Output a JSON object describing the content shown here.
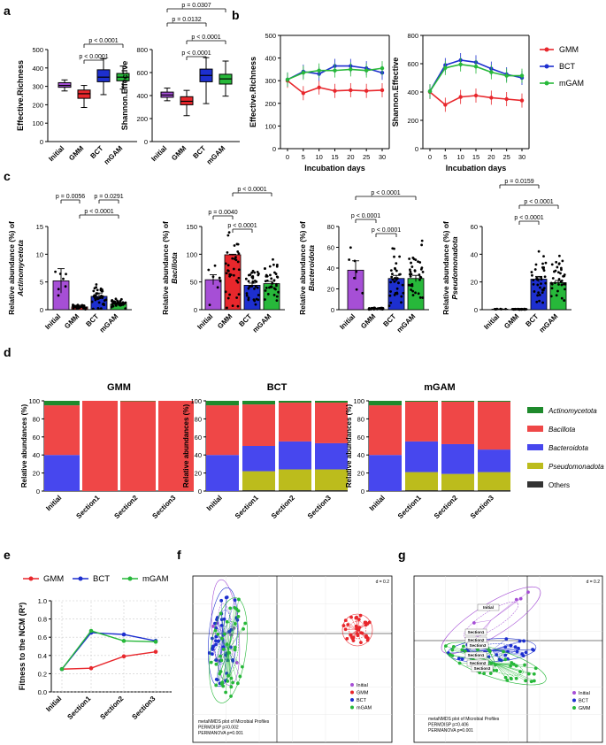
{
  "colors": {
    "Initial": "#a64fd6",
    "GMM": "#e8272c",
    "BCT": "#1d2fcf",
    "mGAM": "#27b83a",
    "Actinomycetota": "#1e8a2c",
    "Bacillota": "#ef4747",
    "Bacteroidota": "#4747ee",
    "Pseudomonadota": "#bcbc1c",
    "Others": "#333333"
  },
  "panel_labels": [
    "a",
    "b",
    "c",
    "d",
    "e",
    "f",
    "g"
  ],
  "chart_data": [
    {
      "id": "a1",
      "type": "box",
      "ylabel": "Effective.Richness",
      "categories": [
        "Initial",
        "GMM",
        "BCT",
        "mGAM"
      ],
      "ylim": [
        0,
        500
      ],
      "yticks": [
        0,
        100,
        200,
        300,
        400,
        500
      ],
      "boxes": [
        [
          275,
          295,
          305,
          320,
          335
        ],
        [
          185,
          235,
          260,
          280,
          305
        ],
        [
          255,
          325,
          350,
          390,
          450
        ],
        [
          285,
          330,
          350,
          370,
          410
        ]
      ],
      "annotations": [
        "p < 0.0001",
        "p < 0.0001"
      ]
    },
    {
      "id": "a2",
      "type": "box",
      "ylabel": "Shannon.Effective",
      "categories": [
        "Initial",
        "GMM",
        "BCT",
        "mGAM"
      ],
      "ylim": [
        0,
        800
      ],
      "yticks": [
        0,
        200,
        400,
        600,
        800
      ],
      "boxes": [
        [
          355,
          385,
          405,
          430,
          465
        ],
        [
          225,
          320,
          350,
          390,
          445
        ],
        [
          330,
          520,
          575,
          630,
          730
        ],
        [
          395,
          500,
          545,
          585,
          700
        ]
      ],
      "annotations": [
        "p = 0.0307",
        "p = 0.0132",
        "p < 0.0001",
        "p < 0.0001"
      ]
    },
    {
      "id": "b1",
      "type": "line",
      "xlabel": "Incubation days",
      "ylabel": "Effective.Richness",
      "x": [
        0,
        5,
        10,
        15,
        20,
        25,
        30
      ],
      "ylim": [
        0,
        500
      ],
      "yticks": [
        0,
        100,
        200,
        300,
        400,
        500
      ],
      "series": [
        {
          "name": "GMM",
          "values": [
            300,
            245,
            270,
            255,
            258,
            255,
            258
          ]
        },
        {
          "name": "BCT",
          "values": [
            305,
            340,
            330,
            365,
            365,
            355,
            335
          ]
        },
        {
          "name": "mGAM",
          "values": [
            305,
            335,
            345,
            345,
            350,
            345,
            355
          ]
        }
      ]
    },
    {
      "id": "b2",
      "type": "line",
      "xlabel": "Incubation days",
      "ylabel": "Shannon.Effective",
      "x": [
        0,
        5,
        10,
        15,
        20,
        25,
        30
      ],
      "ylim": [
        0,
        800
      ],
      "yticks": [
        0,
        200,
        400,
        600,
        800
      ],
      "series": [
        {
          "name": "GMM",
          "values": [
            400,
            310,
            365,
            375,
            360,
            350,
            340
          ]
        },
        {
          "name": "BCT",
          "values": [
            405,
            590,
            625,
            610,
            565,
            525,
            500
          ]
        },
        {
          "name": "mGAM",
          "values": [
            405,
            570,
            595,
            580,
            540,
            515,
            515
          ]
        }
      ]
    },
    {
      "id": "c1",
      "type": "bar",
      "ylabel": "Relative abundance (%) of",
      "ylabel_italic": "Actinomycetota",
      "categories": [
        "Initial",
        "GMM",
        "BCT",
        "mGAM"
      ],
      "ylim": [
        0,
        15
      ],
      "yticks": [
        0,
        5,
        10,
        15
      ],
      "values": [
        5.2,
        0.5,
        2.4,
        1.0
      ],
      "errors": [
        2.2,
        0.3,
        0.6,
        0.3
      ],
      "annotations": [
        "p = 0.0056",
        "p < 0.0001",
        "p = 0.0291"
      ]
    },
    {
      "id": "c2",
      "type": "bar",
      "ylabel": "Relative abundance (%) of",
      "ylabel_italic": "Bacillota",
      "categories": [
        "Initial",
        "GMM",
        "BCT",
        "mGAM"
      ],
      "ylim": [
        0,
        150
      ],
      "yticks": [
        0,
        50,
        100,
        150
      ],
      "values": [
        54,
        99,
        44,
        47
      ],
      "errors": [
        9,
        1,
        4,
        4
      ],
      "annotations": [
        "p = 0.0040",
        "p < 0.0001",
        "p < 0.0001"
      ]
    },
    {
      "id": "c3",
      "type": "bar",
      "ylabel": "Relative abundance (%) of",
      "ylabel_italic": "Bacteroidota",
      "categories": [
        "Initial",
        "GMM",
        "BCT",
        "mGAM"
      ],
      "ylim": [
        0,
        80
      ],
      "yticks": [
        0,
        20,
        40,
        60,
        80
      ],
      "values": [
        38,
        1,
        30,
        30
      ],
      "errors": [
        9,
        0.5,
        3,
        3
      ],
      "annotations": [
        "p < 0.0001",
        "p < 0.0001",
        "p < 0.0001"
      ]
    },
    {
      "id": "c4",
      "type": "bar",
      "ylabel": "Relative abundance (%) of",
      "ylabel_italic": "Pseudomonadota",
      "categories": [
        "Initial",
        "GMM",
        "BCT",
        "mGAM"
      ],
      "ylim": [
        0,
        60
      ],
      "yticks": [
        0,
        20,
        40,
        60
      ],
      "values": [
        0.4,
        0.3,
        22,
        19.5
      ],
      "errors": [
        0.2,
        0.2,
        2,
        1.5
      ],
      "annotations": [
        "p = 0.0159",
        "p < 0.0001",
        "p < 0.0001"
      ]
    },
    {
      "id": "d1",
      "type": "stacked_bar",
      "title": "GMM",
      "ylabel": "Relative abundances (%)",
      "categories": [
        "Initial",
        "Section1",
        "Section2",
        "Section3"
      ],
      "ylim": [
        0,
        100
      ],
      "yticks": [
        0,
        20,
        40,
        60,
        80,
        100
      ],
      "series": [
        {
          "name": "Others",
          "values": [
            0,
            0,
            0,
            0
          ]
        },
        {
          "name": "Pseudomonadota",
          "values": [
            0,
            0,
            0,
            0
          ]
        },
        {
          "name": "Bacteroidota",
          "values": [
            40,
            0,
            0,
            0
          ]
        },
        {
          "name": "Bacillota",
          "values": [
            55,
            100,
            99.5,
            100
          ]
        },
        {
          "name": "Actinomycetota",
          "values": [
            5,
            0,
            0.5,
            0
          ]
        }
      ]
    },
    {
      "id": "d2",
      "type": "stacked_bar",
      "title": "BCT",
      "ylabel": "Relative abundances (%)",
      "categories": [
        "Initial",
        "Section1",
        "Section2",
        "Section3"
      ],
      "ylim": [
        0,
        100
      ],
      "yticks": [
        0,
        20,
        40,
        60,
        80,
        100
      ],
      "series": [
        {
          "name": "Others",
          "values": [
            0,
            1,
            1,
            1
          ]
        },
        {
          "name": "Pseudomonadota",
          "values": [
            0,
            21,
            23,
            23
          ]
        },
        {
          "name": "Bacteroidota",
          "values": [
            40,
            28,
            31,
            29
          ]
        },
        {
          "name": "Bacillota",
          "values": [
            55,
            46,
            43,
            45
          ]
        },
        {
          "name": "Actinomycetota",
          "values": [
            5,
            4,
            2,
            2
          ]
        }
      ]
    },
    {
      "id": "d3",
      "type": "stacked_bar",
      "title": "mGAM",
      "ylabel": "Relative abundances (%)",
      "categories": [
        "Initial",
        "Section1",
        "Section2",
        "Section3"
      ],
      "ylim": [
        0,
        100
      ],
      "yticks": [
        0,
        20,
        40,
        60,
        80,
        100
      ],
      "series": [
        {
          "name": "Others",
          "values": [
            0,
            1,
            1,
            1
          ]
        },
        {
          "name": "Pseudomonadota",
          "values": [
            0,
            20,
            18,
            20
          ]
        },
        {
          "name": "Bacteroidota",
          "values": [
            40,
            34,
            33,
            25
          ]
        },
        {
          "name": "Bacillota",
          "values": [
            55,
            44,
            47,
            53
          ]
        },
        {
          "name": "Actinomycetota",
          "values": [
            5,
            1,
            1,
            1
          ]
        }
      ]
    },
    {
      "id": "e",
      "type": "line",
      "ylabel": "Fitness to the NCM (R²)",
      "categories": [
        "Initial",
        "Section1",
        "Section2",
        "Section3"
      ],
      "ylim": [
        0,
        1.0
      ],
      "yticks": [
        0,
        0.2,
        0.4,
        0.6,
        0.8,
        1.0
      ],
      "series": [
        {
          "name": "GMM",
          "values": [
            0.25,
            0.26,
            0.39,
            0.44
          ]
        },
        {
          "name": "BCT",
          "values": [
            0.25,
            0.65,
            0.63,
            0.56
          ]
        },
        {
          "name": "mGAM",
          "values": [
            0.25,
            0.67,
            0.56,
            0.55
          ]
        }
      ]
    },
    {
      "id": "f",
      "type": "scatter",
      "groups": [
        "Initial",
        "GMM",
        "BCT",
        "mGAM"
      ],
      "caption": [
        "metaNMDS plot of Microbial Profiles",
        "PERMDISP    p=0.002",
        "PERMANOVA  p=0.001"
      ],
      "scale": "d = 0.2"
    },
    {
      "id": "g",
      "type": "scatter",
      "groups": [
        "Initial",
        "BCT",
        "GMM"
      ],
      "group_labels": [
        "Initial",
        "Section1",
        "Section2",
        "Section3",
        "Section1",
        "Section2",
        "Section3"
      ],
      "caption": [
        "metaNMDS plot of Microbial Profiles",
        "PERMDISP    p=0.406",
        "PERMANOVA  p=0.001"
      ],
      "scale": "d = 0.2"
    }
  ]
}
